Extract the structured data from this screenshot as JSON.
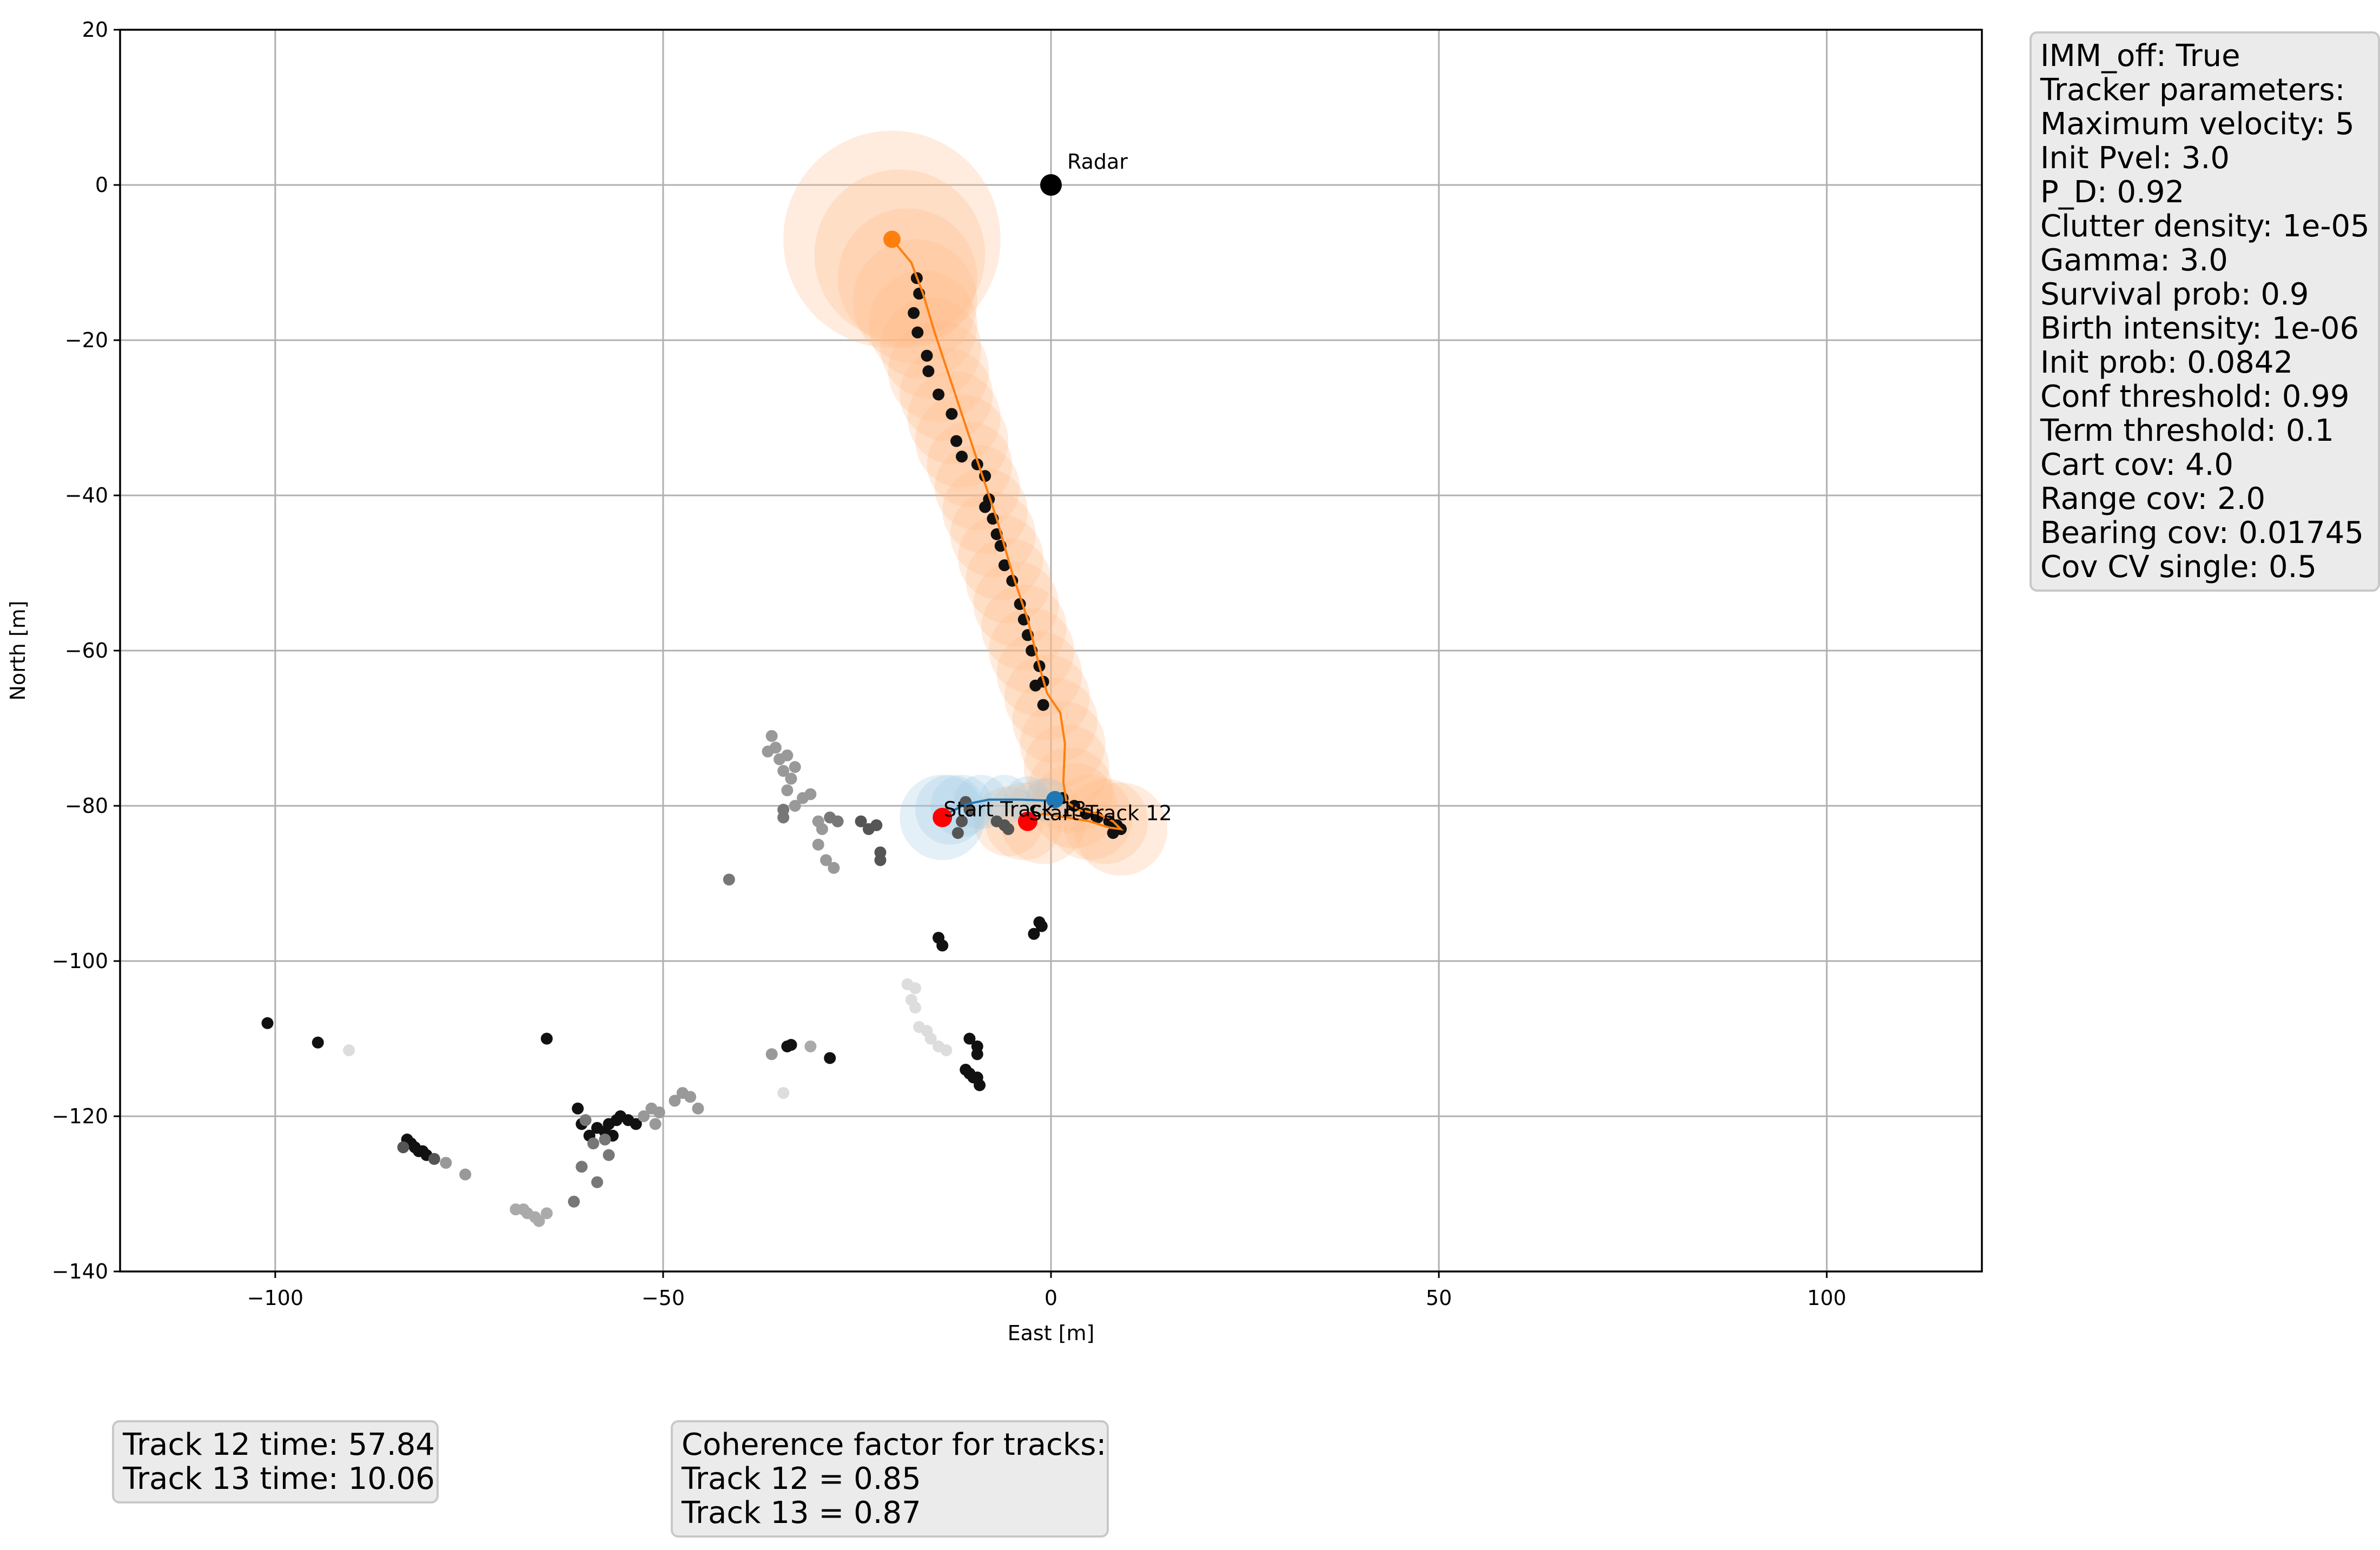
{
  "chart_data": {
    "type": "scatter",
    "title": "",
    "xlabel": "East [m]",
    "ylabel": "North [m]",
    "xlim": [
      -120,
      120
    ],
    "ylim": [
      -140,
      20
    ],
    "xticks": [
      -100,
      -50,
      0,
      50,
      100
    ],
    "yticks": [
      20,
      0,
      -20,
      -40,
      -60,
      -80,
      -100,
      -120,
      -140
    ],
    "grid": true,
    "radar": {
      "label": "Radar",
      "x": 0,
      "y": 0,
      "color": "#000000"
    },
    "tracks": [
      {
        "id": "track-12",
        "start_label": "Start Track 12",
        "color": "#ff7f0e",
        "covariance_color": "#ffbb88",
        "start": [
          -3,
          -82
        ],
        "path": [
          [
            -3,
            -82
          ],
          [
            -1,
            -81
          ],
          [
            2,
            -81.5
          ],
          [
            5,
            -82
          ],
          [
            7.5,
            -82.8
          ],
          [
            9,
            -83
          ],
          [
            8,
            -82
          ],
          [
            6,
            -81
          ],
          [
            3.5,
            -80.5
          ],
          [
            2,
            -79.5
          ],
          [
            1.6,
            -77
          ],
          [
            1.8,
            -72
          ],
          [
            1.2,
            -68
          ],
          [
            -0.5,
            -65.5
          ],
          [
            -1.5,
            -62
          ],
          [
            -3,
            -56
          ],
          [
            -5,
            -50
          ],
          [
            -7,
            -43
          ],
          [
            -9,
            -37
          ],
          [
            -11,
            -31
          ],
          [
            -13,
            -25
          ],
          [
            -15,
            -19
          ],
          [
            -16.5,
            -14
          ],
          [
            -18,
            -10
          ],
          [
            -20.5,
            -7
          ]
        ],
        "end": [
          -20.5,
          -7
        ],
        "covariance": [
          [
            -20.5,
            -7,
            14
          ],
          [
            -19.5,
            -9,
            11
          ],
          [
            -18.5,
            -12,
            9
          ],
          [
            -17.5,
            -15,
            8
          ],
          [
            -16.5,
            -18,
            7
          ],
          [
            -15.5,
            -21,
            6.5
          ],
          [
            -14.5,
            -24,
            6.5
          ],
          [
            -13.5,
            -27,
            6
          ],
          [
            -12.5,
            -30,
            6
          ],
          [
            -11.5,
            -33,
            6
          ],
          [
            -10.5,
            -36,
            5.5
          ],
          [
            -9.5,
            -39,
            5.5
          ],
          [
            -8.5,
            -42,
            5.5
          ],
          [
            -7.5,
            -45,
            5.5
          ],
          [
            -6.5,
            -48,
            5.5
          ],
          [
            -5.5,
            -51,
            5.5
          ],
          [
            -4.5,
            -54,
            5.5
          ],
          [
            -3.5,
            -57,
            5.5
          ],
          [
            -2.5,
            -60,
            5.5
          ],
          [
            -1.5,
            -63,
            5.5
          ],
          [
            -0.5,
            -66,
            5.5
          ],
          [
            0.5,
            -69,
            5.5
          ],
          [
            1.5,
            -72,
            5.5
          ],
          [
            2,
            -75,
            5.5
          ],
          [
            2.5,
            -78,
            5.5
          ],
          [
            3,
            -80,
            5.5
          ],
          [
            5,
            -81.5,
            5.5
          ],
          [
            7,
            -82,
            5.5
          ],
          [
            9,
            -83,
            6
          ],
          [
            -1,
            -82,
            5.5
          ],
          [
            -3.5,
            -82,
            5
          ],
          [
            -5.5,
            -82,
            4.5
          ]
        ]
      },
      {
        "id": "track-13",
        "start_label": "Start Track 13",
        "color": "#1f77b4",
        "covariance_color": "#9ecae1",
        "start": [
          -14,
          -81.5
        ],
        "path": [
          [
            -14,
            -81.5
          ],
          [
            -13,
            -80.8
          ],
          [
            -11,
            -79.8
          ],
          [
            -8,
            -79.2
          ],
          [
            -4,
            -79.2
          ],
          [
            -1,
            -79.3
          ],
          [
            0.5,
            -79.2
          ]
        ],
        "end": [
          0.5,
          -79.2
        ],
        "covariance": [
          [
            -14,
            -81.5,
            5.5
          ],
          [
            -13,
            -80.5,
            4.5
          ],
          [
            -11.5,
            -80,
            4
          ],
          [
            -9,
            -79.5,
            3.5
          ],
          [
            -6,
            -79.2,
            3.2
          ],
          [
            -3,
            -79.2,
            3
          ],
          [
            -0.5,
            -79.2,
            2.8
          ]
        ]
      }
    ],
    "detections": [
      {
        "x": -17.3,
        "y": -12,
        "shade": "#111111"
      },
      {
        "x": -17,
        "y": -14,
        "shade": "#111111"
      },
      {
        "x": -17.7,
        "y": -16.5,
        "shade": "#111111"
      },
      {
        "x": -17.2,
        "y": -19,
        "shade": "#111111"
      },
      {
        "x": -16,
        "y": -22,
        "shade": "#111111"
      },
      {
        "x": -15.8,
        "y": -24,
        "shade": "#111111"
      },
      {
        "x": -14.5,
        "y": -27,
        "shade": "#111111"
      },
      {
        "x": -12.8,
        "y": -29.5,
        "shade": "#111111"
      },
      {
        "x": -12.2,
        "y": -33,
        "shade": "#111111"
      },
      {
        "x": -11.5,
        "y": -35,
        "shade": "#111111"
      },
      {
        "x": -9.5,
        "y": -36,
        "shade": "#111111"
      },
      {
        "x": -8.5,
        "y": -37.5,
        "shade": "#111111"
      },
      {
        "x": -8,
        "y": -40.5,
        "shade": "#111111"
      },
      {
        "x": -8.5,
        "y": -41.5,
        "shade": "#111111"
      },
      {
        "x": -7.5,
        "y": -43,
        "shade": "#111111"
      },
      {
        "x": -7,
        "y": -45,
        "shade": "#111111"
      },
      {
        "x": -6.5,
        "y": -46.5,
        "shade": "#111111"
      },
      {
        "x": -6,
        "y": -49,
        "shade": "#111111"
      },
      {
        "x": -5,
        "y": -51,
        "shade": "#111111"
      },
      {
        "x": -4,
        "y": -54,
        "shade": "#111111"
      },
      {
        "x": -3.5,
        "y": -56,
        "shade": "#111111"
      },
      {
        "x": -3,
        "y": -58,
        "shade": "#111111"
      },
      {
        "x": -2.5,
        "y": -60,
        "shade": "#111111"
      },
      {
        "x": -1.5,
        "y": -62,
        "shade": "#111111"
      },
      {
        "x": -1,
        "y": -64,
        "shade": "#111111"
      },
      {
        "x": -2,
        "y": -64.5,
        "shade": "#111111"
      },
      {
        "x": -1,
        "y": -67,
        "shade": "#111111"
      },
      {
        "x": 0.5,
        "y": -79.5,
        "shade": "#111111"
      },
      {
        "x": 1.5,
        "y": -79,
        "shade": "#111111"
      },
      {
        "x": 3,
        "y": -80,
        "shade": "#111111"
      },
      {
        "x": 4.5,
        "y": -81,
        "shade": "#111111"
      },
      {
        "x": 6,
        "y": -81.5,
        "shade": "#111111"
      },
      {
        "x": 7.5,
        "y": -82,
        "shade": "#111111"
      },
      {
        "x": 8.5,
        "y": -82.5,
        "shade": "#111111"
      },
      {
        "x": 8,
        "y": -83.5,
        "shade": "#111111"
      },
      {
        "x": 9,
        "y": -83,
        "shade": "#111111"
      },
      {
        "x": -1.5,
        "y": -95,
        "shade": "#111111"
      },
      {
        "x": -1.2,
        "y": -95.5,
        "shade": "#111111"
      },
      {
        "x": -2.2,
        "y": -96.5,
        "shade": "#111111"
      },
      {
        "x": -14.5,
        "y": -97,
        "shade": "#111111"
      },
      {
        "x": -14,
        "y": -98,
        "shade": "#111111"
      },
      {
        "x": -10.5,
        "y": -110,
        "shade": "#111111"
      },
      {
        "x": -9.5,
        "y": -111,
        "shade": "#111111"
      },
      {
        "x": -9.5,
        "y": -112,
        "shade": "#111111"
      },
      {
        "x": -11,
        "y": -114,
        "shade": "#111111"
      },
      {
        "x": -10.5,
        "y": -114.5,
        "shade": "#111111"
      },
      {
        "x": -9.5,
        "y": -115,
        "shade": "#111111"
      },
      {
        "x": -9.2,
        "y": -116,
        "shade": "#111111"
      },
      {
        "x": -10,
        "y": -115,
        "shade": "#111111"
      },
      {
        "x": -28.5,
        "y": -112.5,
        "shade": "#111111"
      },
      {
        "x": -33.5,
        "y": -110.8,
        "shade": "#111111"
      },
      {
        "x": -34,
        "y": -111,
        "shade": "#111111"
      },
      {
        "x": -65,
        "y": -110,
        "shade": "#111111"
      },
      {
        "x": -101,
        "y": -108,
        "shade": "#111111"
      },
      {
        "x": -94.5,
        "y": -110.5,
        "shade": "#111111"
      },
      {
        "x": -61,
        "y": -119,
        "shade": "#111111"
      },
      {
        "x": -60.5,
        "y": -121,
        "shade": "#111111"
      },
      {
        "x": -58.5,
        "y": -121.5,
        "shade": "#111111"
      },
      {
        "x": -57.5,
        "y": -122,
        "shade": "#111111"
      },
      {
        "x": -57,
        "y": -121,
        "shade": "#111111"
      },
      {
        "x": -56,
        "y": -120.5,
        "shade": "#111111"
      },
      {
        "x": -55.5,
        "y": -120,
        "shade": "#111111"
      },
      {
        "x": -54.5,
        "y": -120.5,
        "shade": "#111111"
      },
      {
        "x": -53.5,
        "y": -121,
        "shade": "#111111"
      },
      {
        "x": -59.5,
        "y": -122.5,
        "shade": "#111111"
      },
      {
        "x": -56.5,
        "y": -122.5,
        "shade": "#111111"
      },
      {
        "x": -83,
        "y": -123,
        "shade": "#111111"
      },
      {
        "x": -82.5,
        "y": -123.5,
        "shade": "#111111"
      },
      {
        "x": -82,
        "y": -124,
        "shade": "#111111"
      },
      {
        "x": -81.5,
        "y": -124.5,
        "shade": "#111111"
      },
      {
        "x": -81,
        "y": -124.5,
        "shade": "#111111"
      },
      {
        "x": -80.5,
        "y": -125,
        "shade": "#111111"
      },
      {
        "x": -83.5,
        "y": -124,
        "shade": "#555555"
      },
      {
        "x": -79.5,
        "y": -125.5,
        "shade": "#555555"
      },
      {
        "x": -36,
        "y": -71,
        "shade": "#999999"
      },
      {
        "x": -35.5,
        "y": -72.5,
        "shade": "#999999"
      },
      {
        "x": -36.5,
        "y": -73,
        "shade": "#999999"
      },
      {
        "x": -35,
        "y": -74,
        "shade": "#999999"
      },
      {
        "x": -34,
        "y": -73.5,
        "shade": "#999999"
      },
      {
        "x": -33,
        "y": -75,
        "shade": "#999999"
      },
      {
        "x": -34.5,
        "y": -75.5,
        "shade": "#999999"
      },
      {
        "x": -33.5,
        "y": -76.5,
        "shade": "#999999"
      },
      {
        "x": -32,
        "y": -79,
        "shade": "#999999"
      },
      {
        "x": -31,
        "y": -78.5,
        "shade": "#999999"
      },
      {
        "x": -34,
        "y": -78,
        "shade": "#999999"
      },
      {
        "x": -33,
        "y": -80,
        "shade": "#999999"
      },
      {
        "x": -30,
        "y": -82,
        "shade": "#999999"
      },
      {
        "x": -29.5,
        "y": -83,
        "shade": "#999999"
      },
      {
        "x": -30,
        "y": -85,
        "shade": "#999999"
      },
      {
        "x": -29,
        "y": -87,
        "shade": "#999999"
      },
      {
        "x": -28,
        "y": -88,
        "shade": "#999999"
      },
      {
        "x": -34.5,
        "y": -81.5,
        "shade": "#777777"
      },
      {
        "x": -34.5,
        "y": -80.5,
        "shade": "#777777"
      },
      {
        "x": -28.5,
        "y": -81.5,
        "shade": "#777777"
      },
      {
        "x": -27.5,
        "y": -82,
        "shade": "#777777"
      },
      {
        "x": -24.5,
        "y": -82,
        "shade": "#555555"
      },
      {
        "x": -22.5,
        "y": -82.5,
        "shade": "#555555"
      },
      {
        "x": -23.5,
        "y": -83,
        "shade": "#555555"
      },
      {
        "x": -22,
        "y": -86,
        "shade": "#555555"
      },
      {
        "x": -22,
        "y": -87,
        "shade": "#555555"
      },
      {
        "x": -41.5,
        "y": -89.5,
        "shade": "#777777"
      },
      {
        "x": -18.5,
        "y": -103,
        "shade": "#dddddd"
      },
      {
        "x": -17.5,
        "y": -103.5,
        "shade": "#dddddd"
      },
      {
        "x": -18,
        "y": -105,
        "shade": "#dddddd"
      },
      {
        "x": -17.5,
        "y": -106,
        "shade": "#dddddd"
      },
      {
        "x": -17,
        "y": -108.5,
        "shade": "#dddddd"
      },
      {
        "x": -16,
        "y": -109,
        "shade": "#dddddd"
      },
      {
        "x": -15.5,
        "y": -110,
        "shade": "#dddddd"
      },
      {
        "x": -14.5,
        "y": -111,
        "shade": "#dddddd"
      },
      {
        "x": -13.5,
        "y": -111.5,
        "shade": "#dddddd"
      },
      {
        "x": -90.5,
        "y": -111.5,
        "shade": "#dddddd"
      },
      {
        "x": -34.5,
        "y": -117,
        "shade": "#dddddd"
      },
      {
        "x": -31,
        "y": -111,
        "shade": "#aaaaaa"
      },
      {
        "x": -36,
        "y": -112,
        "shade": "#999999"
      },
      {
        "x": -47.5,
        "y": -117,
        "shade": "#999999"
      },
      {
        "x": -46.5,
        "y": -117.5,
        "shade": "#999999"
      },
      {
        "x": -48.5,
        "y": -118,
        "shade": "#999999"
      },
      {
        "x": -45.5,
        "y": -119,
        "shade": "#999999"
      },
      {
        "x": -51.5,
        "y": -119,
        "shade": "#999999"
      },
      {
        "x": -50.5,
        "y": -119.5,
        "shade": "#999999"
      },
      {
        "x": -52.5,
        "y": -120,
        "shade": "#999999"
      },
      {
        "x": -51,
        "y": -121,
        "shade": "#999999"
      },
      {
        "x": -60,
        "y": -120.5,
        "shade": "#777777"
      },
      {
        "x": -57.5,
        "y": -123,
        "shade": "#777777"
      },
      {
        "x": -59,
        "y": -123.5,
        "shade": "#777777"
      },
      {
        "x": -57,
        "y": -125,
        "shade": "#777777"
      },
      {
        "x": -60.5,
        "y": -126.5,
        "shade": "#777777"
      },
      {
        "x": -58.5,
        "y": -128.5,
        "shade": "#777777"
      },
      {
        "x": -61.5,
        "y": -131,
        "shade": "#777777"
      },
      {
        "x": -75.5,
        "y": -127.5,
        "shade": "#999999"
      },
      {
        "x": -78,
        "y": -126,
        "shade": "#999999"
      },
      {
        "x": -69,
        "y": -132,
        "shade": "#aaaaaa"
      },
      {
        "x": -68,
        "y": -132,
        "shade": "#aaaaaa"
      },
      {
        "x": -67.5,
        "y": -132.5,
        "shade": "#aaaaaa"
      },
      {
        "x": -66.5,
        "y": -133,
        "shade": "#aaaaaa"
      },
      {
        "x": -66,
        "y": -133.5,
        "shade": "#aaaaaa"
      },
      {
        "x": -65,
        "y": -132.5,
        "shade": "#aaaaaa"
      },
      {
        "x": -11,
        "y": -79.5,
        "shade": "#555555"
      },
      {
        "x": -10.5,
        "y": -80.5,
        "shade": "#555555"
      },
      {
        "x": -11.5,
        "y": -82,
        "shade": "#555555"
      },
      {
        "x": -6,
        "y": -82.5,
        "shade": "#555555"
      },
      {
        "x": -5.5,
        "y": -83,
        "shade": "#555555"
      },
      {
        "x": -7,
        "y": -82,
        "shade": "#555555"
      },
      {
        "x": -12,
        "y": -83.5,
        "shade": "#555555"
      }
    ]
  },
  "params_box": {
    "lines": [
      "IMM_off: True",
      "Tracker parameters:",
      "Maximum velocity: 5",
      "Init Pvel: 3.0",
      "P_D: 0.92",
      "Clutter density: 1e-05",
      "Gamma: 3.0",
      "Survival prob: 0.9",
      "Birth intensity: 1e-06",
      "Init prob: 0.0842",
      "Conf threshold: 0.99",
      "Term threshold: 0.1",
      "Cart cov: 4.0",
      "Range cov: 2.0",
      "Bearing cov: 0.01745",
      "Cov CV single: 0.5"
    ]
  },
  "times_box": {
    "lines": [
      "Track 12 time: 57.84",
      "Track 13 time: 10.06"
    ]
  },
  "coherence_box": {
    "lines": [
      "Coherence factor for tracks:",
      "Track 12 = 0.85",
      "Track 13 = 0.87"
    ]
  }
}
